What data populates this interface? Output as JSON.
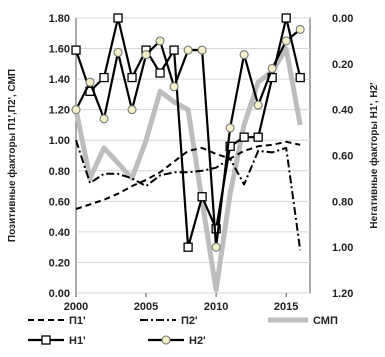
{
  "chart_data": {
    "type": "line",
    "x": [
      2000,
      2001,
      2002,
      2003,
      2004,
      2005,
      2006,
      2007,
      2008,
      2009,
      2010,
      2011,
      2012,
      2013,
      2014,
      2015,
      2016
    ],
    "xlim": [
      2000,
      2016.7
    ],
    "x_ticks": [
      2000,
      2005,
      2010,
      2015
    ],
    "left_axis": {
      "label": "Позитивные факторы  П1',П2', СМП",
      "ylim": [
        0,
        1.8
      ],
      "ticks": [
        "0.00",
        "0.20",
        "0.40",
        "0.60",
        "0.80",
        "1.00",
        "1.20",
        "1.40",
        "1.60",
        "1.80"
      ]
    },
    "right_axis": {
      "label": "Негативные факторы H1', H2'",
      "ylim": [
        0,
        1.2
      ],
      "inverted": true,
      "ticks": [
        "0.00",
        "0.20",
        "0.40",
        "0.60",
        "0.80",
        "1.00",
        "1.20"
      ]
    },
    "series": [
      {
        "name": "П1'",
        "axis": "left",
        "style": "dashed",
        "color": "#000000",
        "values": [
          0.55,
          0.58,
          0.61,
          0.65,
          0.7,
          0.74,
          0.79,
          0.86,
          0.93,
          0.95,
          0.91,
          0.88,
          0.93,
          0.96,
          0.97,
          0.99,
          0.97
        ]
      },
      {
        "name": "П2'",
        "axis": "left",
        "style": "dashdot",
        "color": "#000000",
        "values": [
          1.0,
          0.72,
          0.78,
          0.78,
          0.75,
          0.7,
          0.77,
          0.79,
          0.79,
          0.8,
          0.82,
          0.88,
          0.71,
          0.93,
          0.92,
          0.95,
          0.28
        ]
      },
      {
        "name": "СМП",
        "axis": "left",
        "style": "solid-thick",
        "color": "#bdbdbd",
        "values": [
          1.2,
          0.75,
          0.95,
          0.85,
          0.75,
          1.0,
          1.32,
          1.25,
          1.2,
          0.6,
          0.02,
          0.65,
          1.1,
          1.38,
          1.45,
          1.6,
          1.1
        ]
      },
      {
        "name": "H1'",
        "axis": "right",
        "style": "solid-square",
        "color": "#000000",
        "values": [
          0.14,
          0.32,
          0.26,
          0.0,
          0.26,
          0.14,
          0.24,
          0.14,
          1.0,
          0.78,
          0.92,
          0.56,
          0.52,
          0.52,
          0.26,
          0.0,
          0.26
        ]
      },
      {
        "name": "H2'",
        "axis": "right",
        "style": "solid-circle",
        "color": "#000000",
        "values": [
          0.4,
          0.28,
          0.44,
          0.15,
          0.4,
          0.16,
          0.1,
          0.3,
          0.14,
          0.14,
          1.0,
          0.48,
          0.16,
          0.38,
          0.22,
          0.1,
          0.05
        ]
      }
    ],
    "legend": {
      "position": "bottom",
      "rows": [
        [
          "П1'",
          "П2'",
          "СМП"
        ],
        [
          "H1'",
          "H2'"
        ]
      ]
    }
  }
}
